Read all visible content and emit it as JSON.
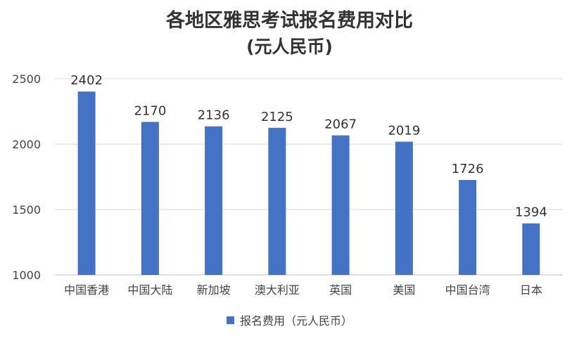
{
  "chart_data": {
    "type": "bar",
    "title": "各地区雅思考试报名费用对比",
    "subtitle": "(元人民币)",
    "categories": [
      "中国香港",
      "中国大陆",
      "新加坡",
      "澳大利亚",
      "英国",
      "美国",
      "中国台湾",
      "日本"
    ],
    "series": [
      {
        "name": "报名费用（元人民币）",
        "values": [
          2402,
          2170,
          2136,
          2125,
          2067,
          2019,
          1726,
          1394
        ],
        "color": "#4472C4"
      }
    ],
    "ylim": [
      1000,
      2500
    ],
    "yticks": [
      1000,
      1500,
      2000,
      2500
    ],
    "grid": true,
    "legend_position": "bottom",
    "data_labels": true
  }
}
